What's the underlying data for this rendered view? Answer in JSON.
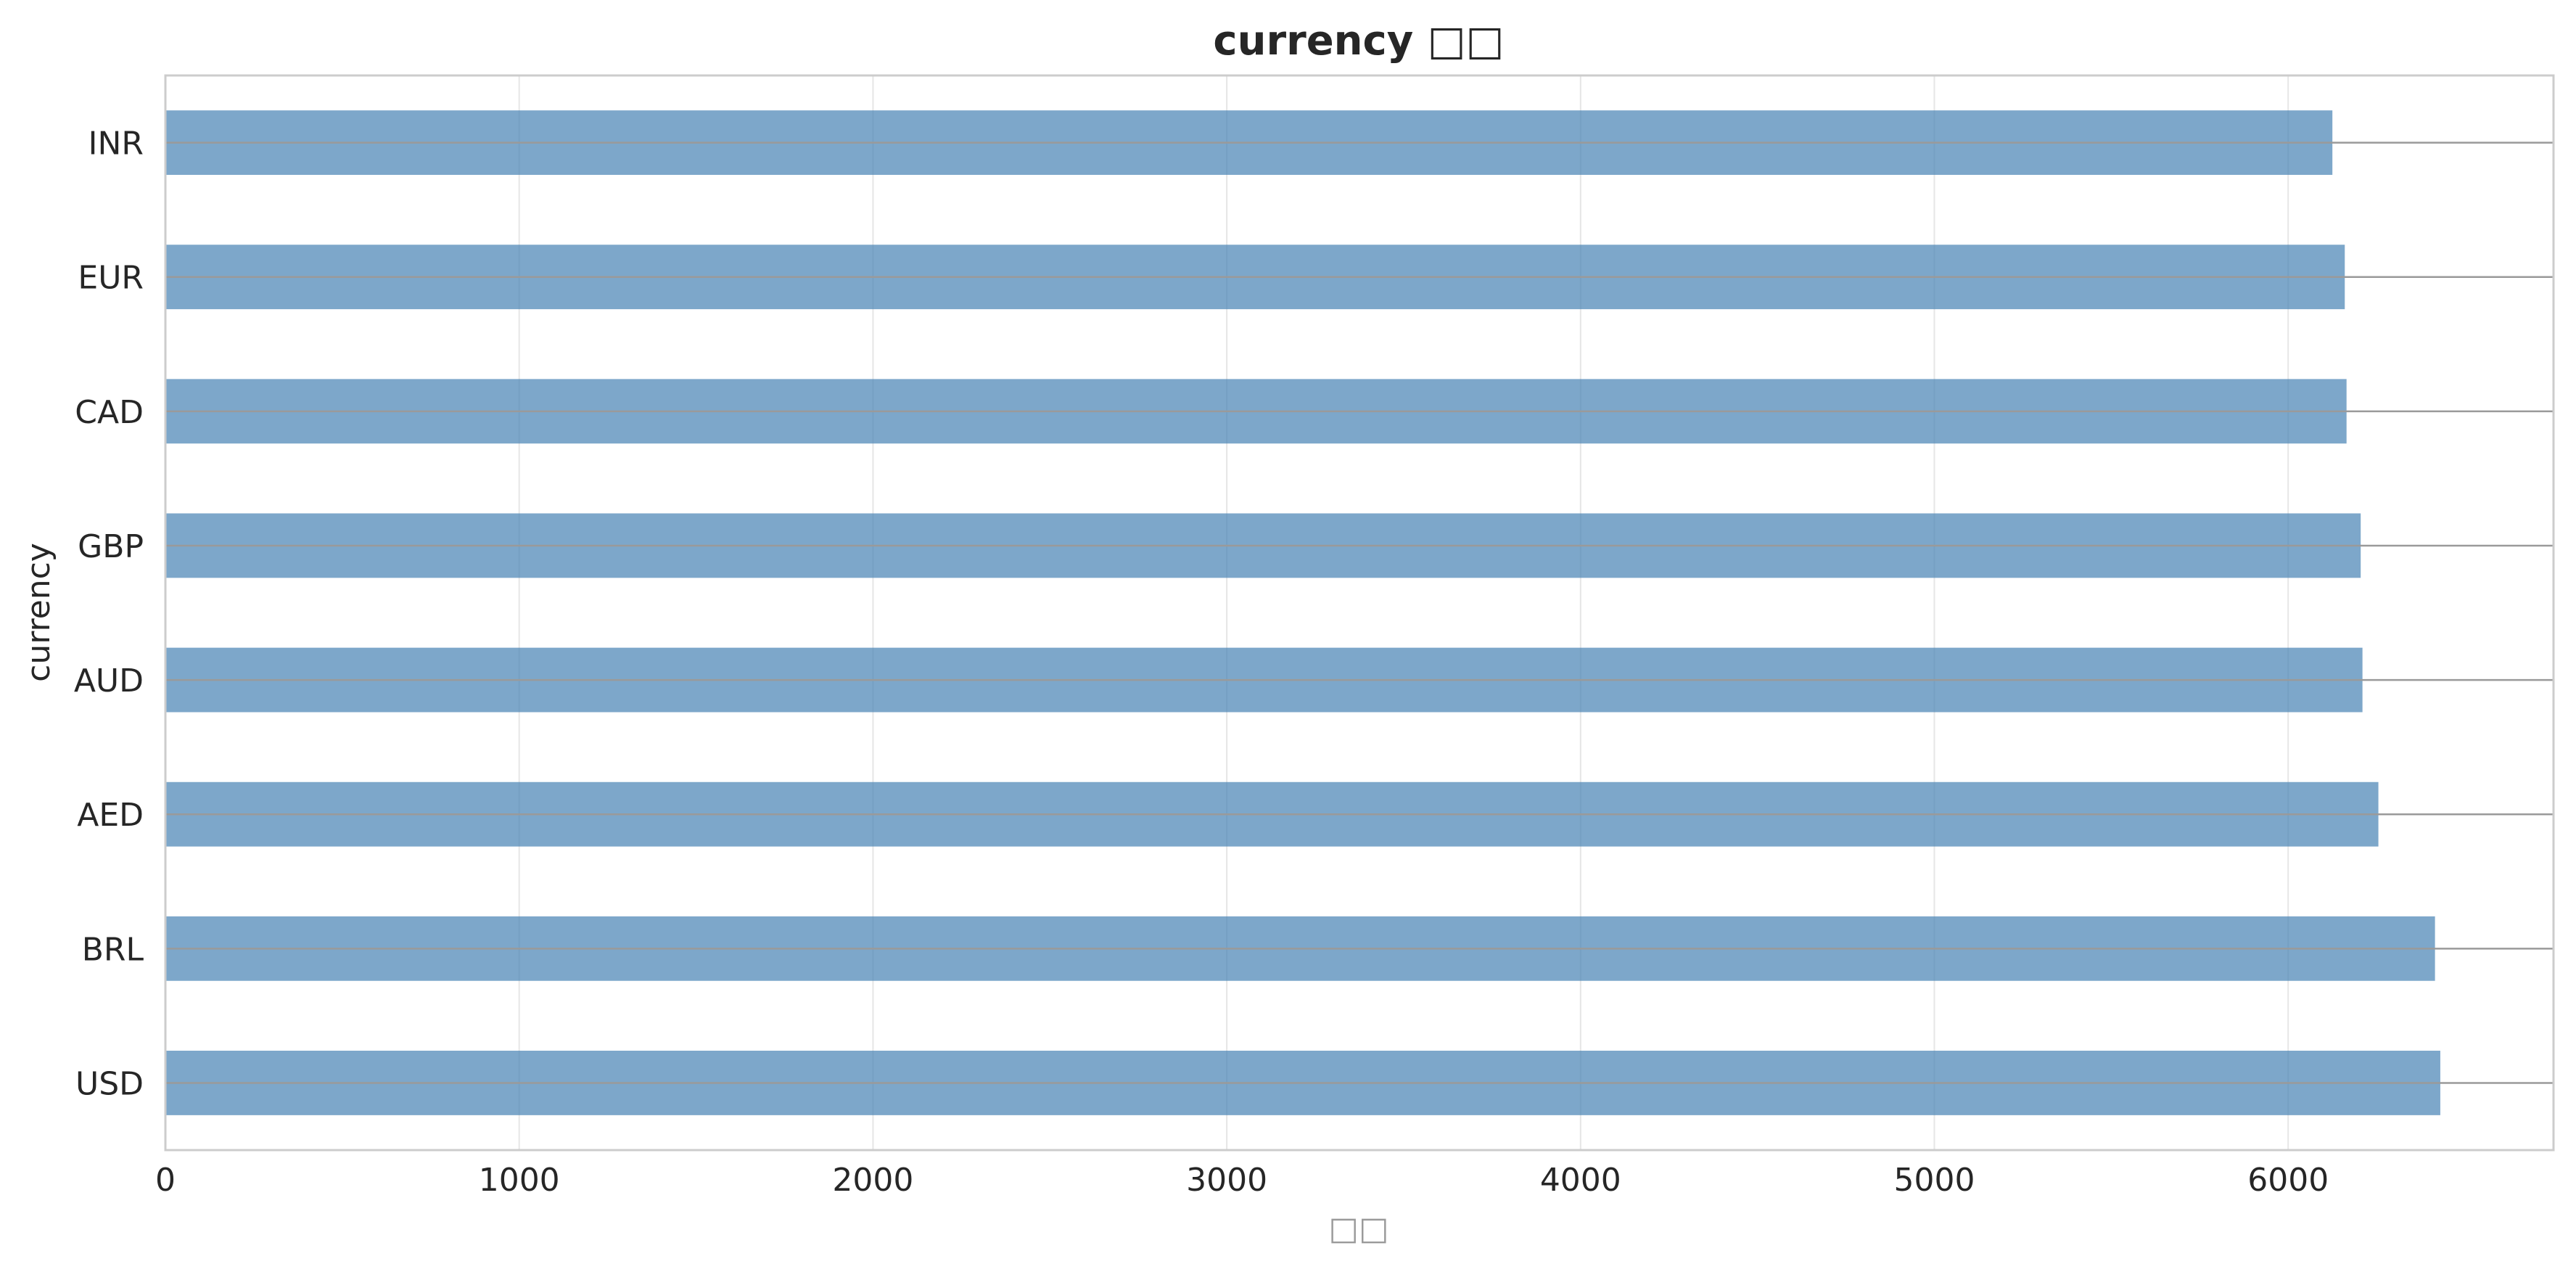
{
  "chart_data": {
    "type": "bar",
    "orientation": "horizontal",
    "title": "currency □□",
    "xlabel": "□□",
    "ylabel": "currency",
    "categories": [
      "USD",
      "BRL",
      "AED",
      "AUD",
      "GBP",
      "CAD",
      "EUR",
      "INR"
    ],
    "values": [
      6430,
      6415,
      6255,
      6210,
      6205,
      6165,
      6160,
      6125
    ],
    "xlim": [
      0,
      6750
    ],
    "xticks": [
      0,
      1000,
      2000,
      3000,
      4000,
      5000,
      6000
    ],
    "grid": true,
    "colors": {
      "bar": "#4682b4"
    }
  }
}
